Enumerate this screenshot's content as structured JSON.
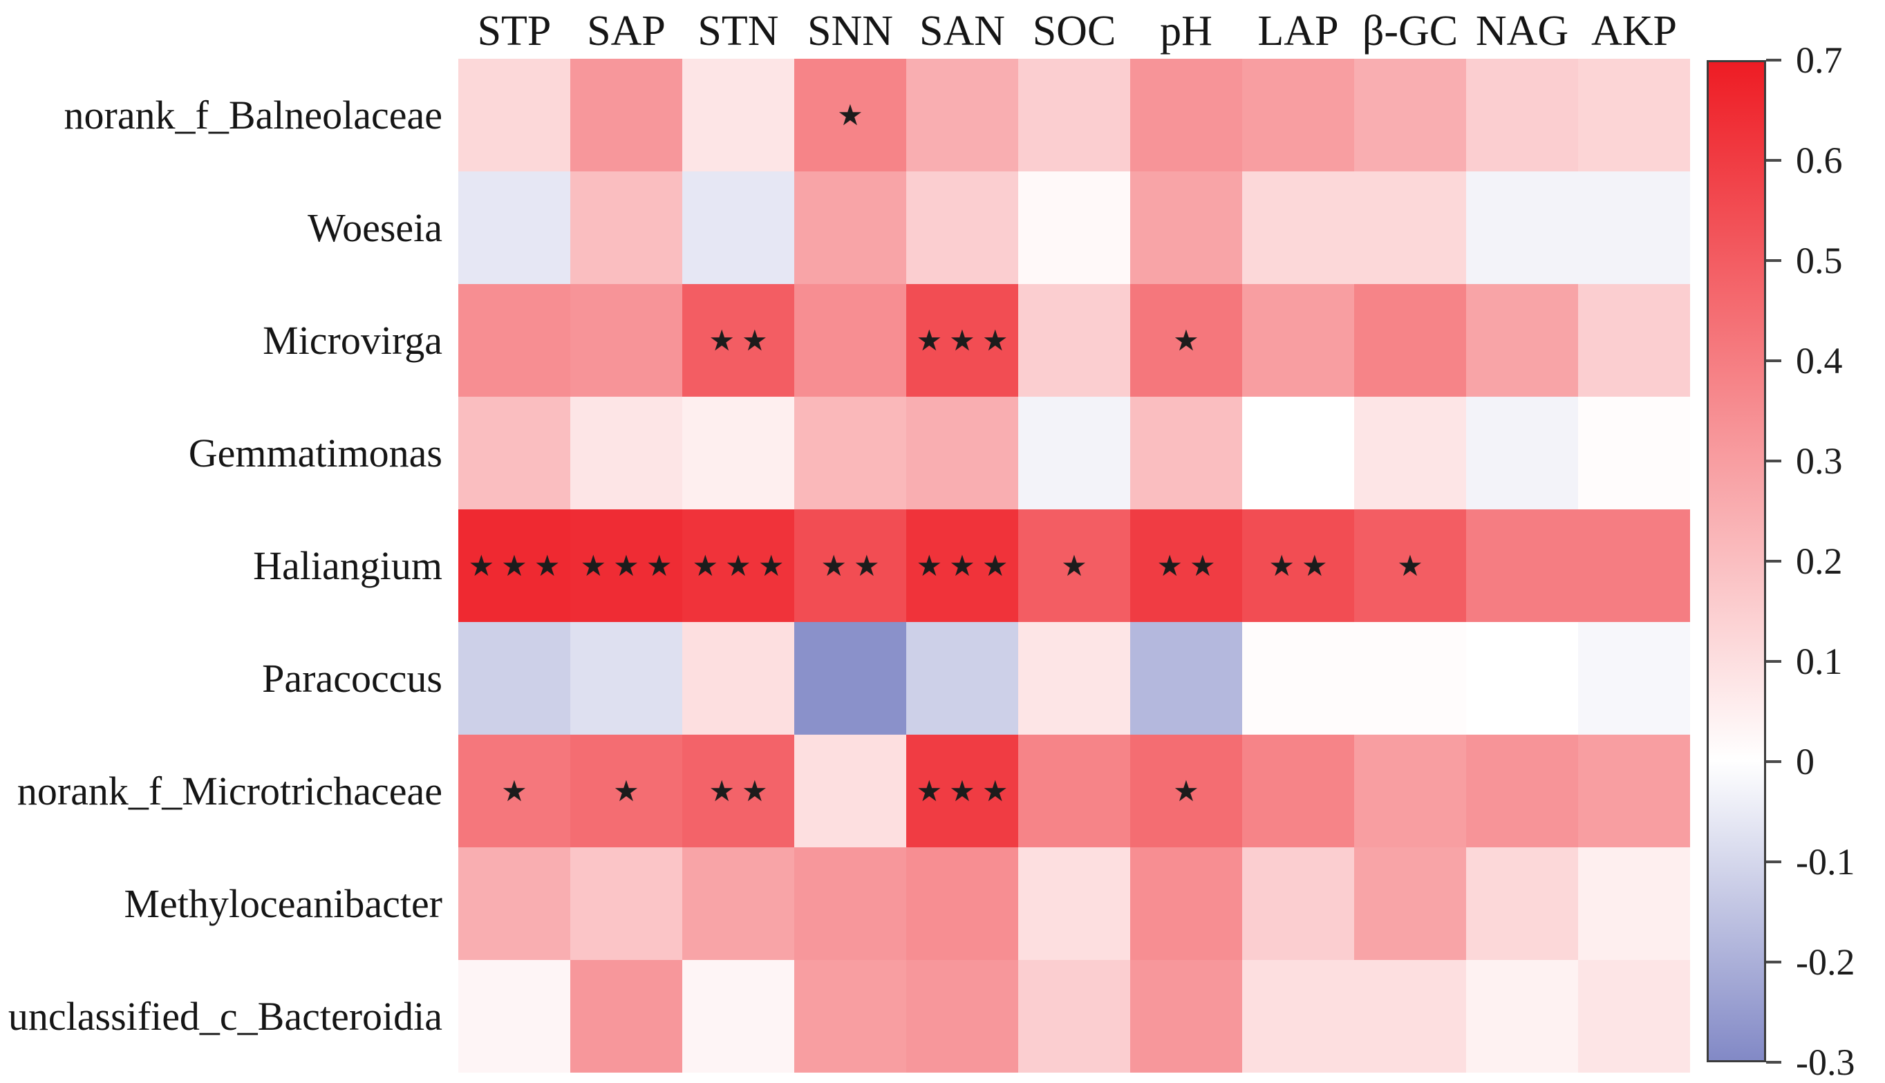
{
  "chart_data": {
    "type": "heatmap",
    "title": "",
    "description": "Correlation heatmap between bacterial genera and soil properties with significance stars",
    "columns": [
      "STP",
      "SAP",
      "STN",
      "SNN",
      "SAN",
      "SOC",
      "pH",
      "LAP",
      "β-GC",
      "NAG",
      "AKP"
    ],
    "rows": [
      "norank_f_Balneolaceae",
      "Woeseia",
      "Microvirga",
      "Gemmatimonas",
      "Haliangium",
      "Paracoccus",
      "norank_f_Microtrichaceae",
      "Methyloceanibacter",
      "unclassified_c_Bacteroidia"
    ],
    "values": [
      [
        0.12,
        0.32,
        0.08,
        0.38,
        0.25,
        0.15,
        0.33,
        0.3,
        0.25,
        0.15,
        0.13
      ],
      [
        -0.06,
        0.2,
        -0.06,
        0.28,
        0.15,
        0.02,
        0.28,
        0.12,
        0.12,
        -0.03,
        -0.03
      ],
      [
        0.35,
        0.33,
        0.5,
        0.35,
        0.55,
        0.15,
        0.42,
        0.3,
        0.38,
        0.28,
        0.15
      ],
      [
        0.2,
        0.08,
        0.05,
        0.22,
        0.25,
        -0.03,
        0.2,
        0.0,
        0.08,
        -0.03,
        0.01
      ],
      [
        0.66,
        0.65,
        0.63,
        0.55,
        0.63,
        0.5,
        0.6,
        0.55,
        0.5,
        0.4,
        0.4
      ],
      [
        -0.12,
        -0.08,
        0.1,
        -0.28,
        -0.12,
        0.08,
        -0.18,
        0.01,
        0.01,
        0.0,
        -0.02
      ],
      [
        0.42,
        0.45,
        0.48,
        0.1,
        0.6,
        0.38,
        0.45,
        0.38,
        0.3,
        0.33,
        0.3
      ],
      [
        0.25,
        0.18,
        0.28,
        0.32,
        0.35,
        0.1,
        0.35,
        0.15,
        0.28,
        0.12,
        0.05
      ],
      [
        0.03,
        0.32,
        0.03,
        0.3,
        0.32,
        0.15,
        0.32,
        0.1,
        0.1,
        0.04,
        0.08
      ]
    ],
    "significance": [
      [
        "",
        "",
        "",
        "*",
        "",
        "",
        "",
        "",
        "",
        "",
        ""
      ],
      [
        "",
        "",
        "",
        "",
        "",
        "",
        "",
        "",
        "",
        "",
        ""
      ],
      [
        "",
        "",
        "**",
        "",
        "***",
        "",
        "*",
        "",
        "",
        "",
        ""
      ],
      [
        "",
        "",
        "",
        "",
        "",
        "",
        "",
        "",
        "",
        "",
        ""
      ],
      [
        "***",
        "***",
        "***",
        "**",
        "***",
        "*",
        "**",
        "**",
        "*",
        "",
        ""
      ],
      [
        "",
        "",
        "",
        "",
        "",
        "",
        "",
        "",
        "",
        "",
        ""
      ],
      [
        "*",
        "*",
        "**",
        "",
        "***",
        "",
        "*",
        "",
        "",
        "",
        ""
      ],
      [
        "",
        "",
        "",
        "",
        "",
        "",
        "",
        "",
        "",
        "",
        ""
      ],
      [
        "",
        "",
        "",
        "",
        "",
        "",
        "",
        "",
        "",
        "",
        ""
      ]
    ],
    "colorbar": {
      "min": -0.3,
      "max": 0.7,
      "tick_labels": [
        "0.7",
        "0.6",
        "0.5",
        "0.4",
        "0.3",
        "0.2",
        "0.1",
        "0",
        "-0.1",
        "-0.2",
        "-0.3"
      ],
      "positive_color": "#ee1c24",
      "negative_color": "#8289c6",
      "zero_color": "#ffffff"
    },
    "legend_position": "right",
    "grid": false,
    "star_color": "#1c1c1c"
  }
}
